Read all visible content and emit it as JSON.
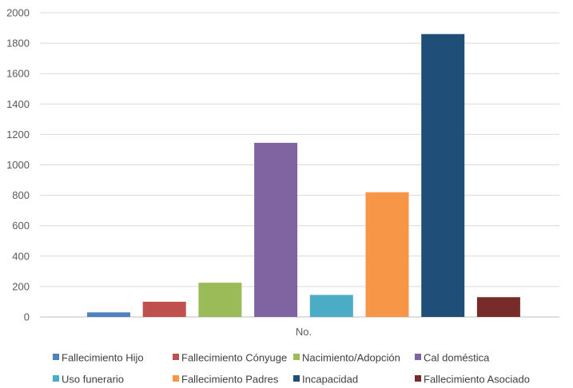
{
  "chart_data": {
    "type": "bar",
    "title": "",
    "xlabel": "",
    "ylabel": "",
    "categories": [
      "No."
    ],
    "ylim": [
      0,
      2000
    ],
    "yticks": [
      0,
      200,
      400,
      600,
      800,
      1000,
      1200,
      1400,
      1600,
      1800,
      2000
    ],
    "grid": true,
    "legend_position": "bottom",
    "series": [
      {
        "name": "Fallecimiento Hijo",
        "values": [
          30
        ],
        "color": "#4f81bd"
      },
      {
        "name": "Fallecimiento Cónyuge",
        "values": [
          100
        ],
        "color": "#c0504d"
      },
      {
        "name": "Nacimiento/Adopción",
        "values": [
          225
        ],
        "color": "#9bbb59"
      },
      {
        "name": "Cal doméstica",
        "values": [
          1145
        ],
        "color": "#8064a2"
      },
      {
        "name": "Uso funerario",
        "values": [
          145
        ],
        "color": "#4bacc6"
      },
      {
        "name": "Fallecimiento Padres",
        "values": [
          820
        ],
        "color": "#f79646"
      },
      {
        "name": "Incapacidad",
        "values": [
          1860
        ],
        "color": "#1f4e79"
      },
      {
        "name": "Fallecimiento Asociado",
        "values": [
          130
        ],
        "color": "#772c2a"
      }
    ]
  }
}
